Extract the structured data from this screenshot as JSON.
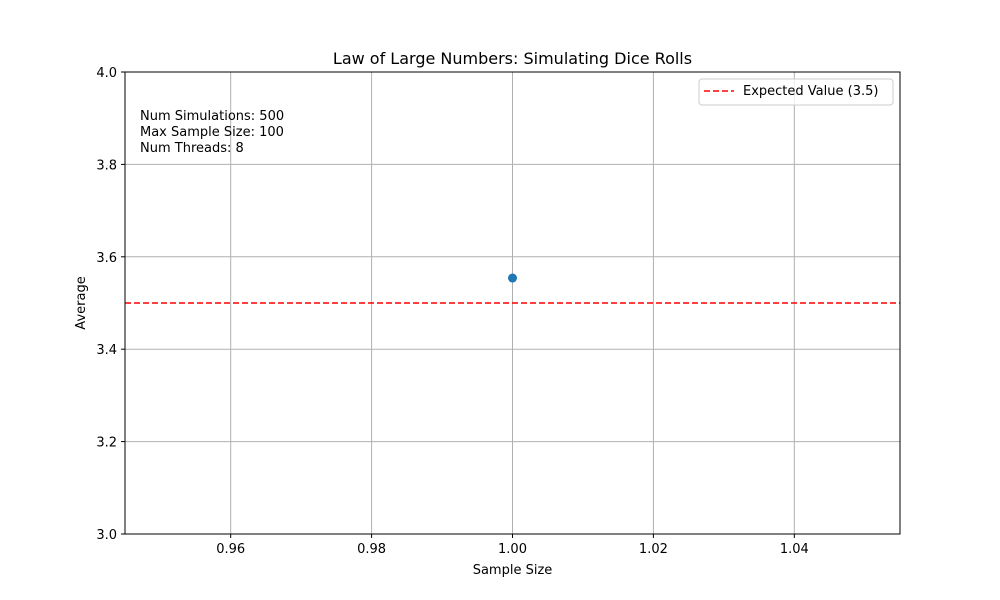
{
  "chart_data": {
    "type": "scatter",
    "title": "Law of Large Numbers: Simulating Dice Rolls",
    "xlabel": "Sample Size",
    "ylabel": "Average",
    "xlim": [
      0.945,
      1.055
    ],
    "ylim": [
      3.0,
      4.0
    ],
    "xticks": [
      0.96,
      0.98,
      1.0,
      1.02,
      1.04
    ],
    "xtick_labels": [
      "0.96",
      "0.98",
      "1.00",
      "1.02",
      "1.04"
    ],
    "yticks": [
      3.0,
      3.2,
      3.4,
      3.6,
      3.8,
      4.0
    ],
    "ytick_labels": [
      "3.0",
      "3.2",
      "3.4",
      "3.6",
      "3.8",
      "4.0"
    ],
    "grid": true,
    "series": [
      {
        "x": [
          1.0
        ],
        "y": [
          3.554
        ],
        "color": "#1f77b4"
      }
    ],
    "reference_line": {
      "y": 3.5,
      "label": "Expected Value (3.5)",
      "color": "#ff0000",
      "style": "dashed"
    },
    "legend": {
      "position": "top-right",
      "entries": [
        "Expected Value (3.5)"
      ]
    },
    "annotations": [
      "Num Simulations: 500",
      "Max Sample Size: 100",
      "Num Threads: 8"
    ]
  }
}
